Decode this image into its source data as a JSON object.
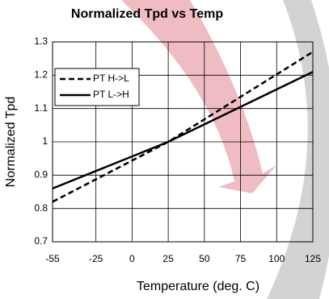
{
  "chart_data": {
    "type": "line",
    "title": "Normalized Tpd vs Temp",
    "x_label": "Temperature (deg. C)",
    "y_label": "Normalized Tpd",
    "x": [
      -55,
      25,
      125
    ],
    "series": [
      {
        "name": "PT H->L",
        "color": "#000000",
        "dash": true,
        "values": [
          0.82,
          1.0,
          1.27
        ]
      },
      {
        "name": "PT L->H",
        "color": "#000000",
        "dash": false,
        "values": [
          0.86,
          1.0,
          1.21
        ]
      }
    ],
    "xlim": [
      -55,
      125
    ],
    "xticks": [
      -55,
      -25,
      0,
      25,
      50,
      75,
      100,
      125
    ],
    "ylim": [
      0.7,
      1.3
    ],
    "yticks": [
      0.7,
      0.8,
      0.9,
      1,
      1.1,
      1.2,
      1.3
    ],
    "grid": true,
    "legend": "upper left"
  }
}
